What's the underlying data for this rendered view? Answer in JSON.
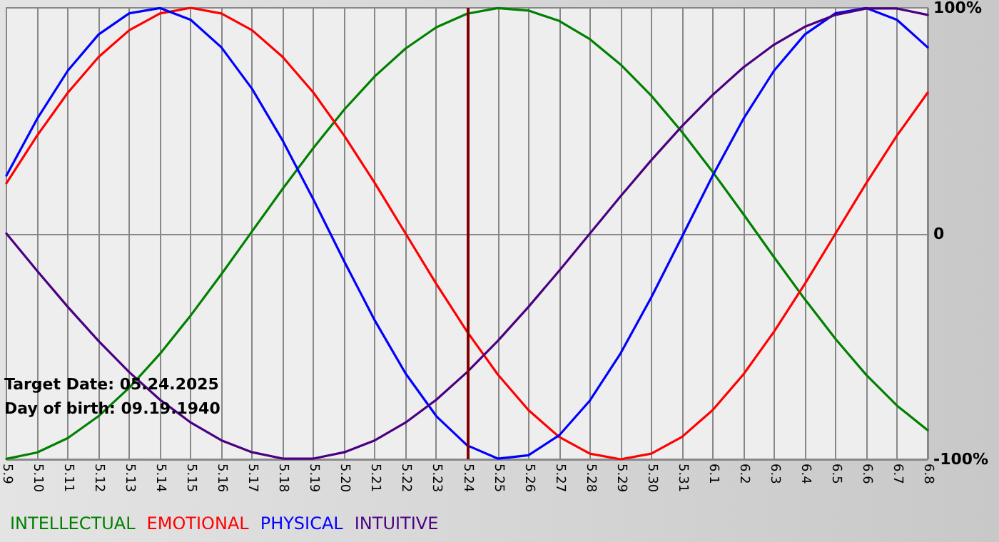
{
  "chart_data": {
    "type": "line",
    "categories": [
      "5.9",
      "5.10",
      "5.11",
      "5.12",
      "5.13",
      "5.14",
      "5.15",
      "5.16",
      "5.17",
      "5.18",
      "5.19",
      "5.20",
      "5.21",
      "5.22",
      "5.23",
      "5.24",
      "5.25",
      "5.26",
      "5.27",
      "5.28",
      "5.29",
      "5.30",
      "5.31",
      "6.1",
      "6.2",
      "6.3",
      "6.4",
      "6.5",
      "6.6",
      "6.7",
      "6.8"
    ],
    "series": [
      {
        "name": "INTELLECTUAL",
        "color": "#008000",
        "values": [
          -99.8,
          -97,
          -90.6,
          -80.9,
          -68.3,
          -53.3,
          -36.3,
          -18,
          1,
          19.9,
          38,
          54.9,
          69.7,
          82,
          91.4,
          97.4,
          99.9,
          98.8,
          94.2,
          86.1,
          74.9,
          61.1,
          45,
          27.3,
          8.6,
          -10.5,
          -29.1,
          -46.7,
          -62.6,
          -76.2,
          -87.1
        ]
      },
      {
        "name": "EMOTIONAL",
        "color": "#ff0000",
        "values": [
          22.3,
          43.4,
          62.4,
          78.2,
          90.1,
          97.5,
          100,
          97.5,
          90.1,
          78.2,
          62.4,
          43.4,
          22.3,
          0,
          -22.3,
          -43.4,
          -62.4,
          -78.2,
          -90.1,
          -97.5,
          -100,
          -97.5,
          -90.1,
          -78.2,
          -62.4,
          -43.4,
          -22.3,
          0,
          22.3,
          43.4,
          62.4
        ]
      },
      {
        "name": "PHYSICAL",
        "color": "#0000ff",
        "values": [
          25.7,
          50.8,
          72.2,
          88.2,
          97.6,
          99.9,
          94.7,
          82.5,
          64.1,
          41.1,
          15,
          -12.3,
          -38.6,
          -62,
          -80.9,
          -93.8,
          -99.7,
          -98.2,
          -89.4,
          -74,
          -53.1,
          -28.3,
          -1.4,
          25.7,
          50.8,
          72.2,
          88.2,
          97.6,
          99.9,
          94.7,
          82.5
        ]
      },
      {
        "name": "INTUITIVE",
        "color": "#4b0082",
        "values": [
          0,
          -16.5,
          -32.5,
          -47.6,
          -61.4,
          -73.6,
          -83.7,
          -91.6,
          -96.9,
          -99.7,
          -99.7,
          -96.9,
          -91.6,
          -83.7,
          -73.6,
          -61.4,
          -47.6,
          -32.5,
          -16.5,
          0,
          16.5,
          32.5,
          47.6,
          61.4,
          73.6,
          83.7,
          91.6,
          96.9,
          99.7,
          99.7,
          96.9
        ]
      }
    ],
    "ylim": [
      -100,
      100
    ],
    "yticks": [
      {
        "value": -100,
        "label": "-100%"
      },
      {
        "value": 0,
        "label": "0"
      },
      {
        "value": 100,
        "label": "100%"
      }
    ],
    "ref_lines": [
      {
        "axis": "x",
        "value": "5.24",
        "color": "#800000"
      }
    ],
    "annotations": [
      "Target Date: 05.24.2025",
      "Day of birth: 09.19.1940"
    ],
    "grid": true,
    "legend": "bottom left",
    "marker": "none",
    "line_style": "solid"
  }
}
